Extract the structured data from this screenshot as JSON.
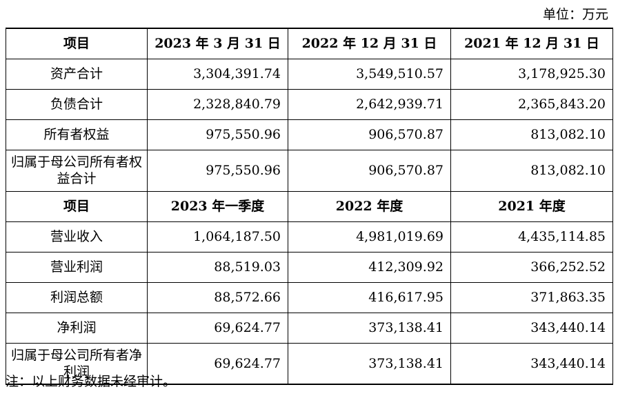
{
  "unit_label": "单位：万元",
  "table": {
    "balance_header": [
      "项目",
      "2023 年 3 月 31 日",
      "2022 年 12 月 31 日",
      "2021 年 12 月 31 日"
    ],
    "balance_rows": [
      {
        "label": "资产合计",
        "values": [
          "3,304,391.74",
          "3,549,510.57",
          "3,178,925.30"
        ]
      },
      {
        "label": "负债合计",
        "values": [
          "2,328,840.79",
          "2,642,939.71",
          "2,365,843.20"
        ]
      },
      {
        "label": "所有者权益",
        "values": [
          "975,550.96",
          "906,570.87",
          "813,082.10"
        ]
      },
      {
        "label": "归属于母公司所有者权益合计",
        "values": [
          "975,550.96",
          "906,570.87",
          "813,082.10"
        ]
      }
    ],
    "income_header": [
      "项目",
      "2023 年一季度",
      "2022 年度",
      "2021 年度"
    ],
    "income_rows": [
      {
        "label": "营业收入",
        "values": [
          "1,064,187.50",
          "4,981,019.69",
          "4,435,114.85"
        ]
      },
      {
        "label": "营业利润",
        "values": [
          "88,519.03",
          "412,309.92",
          "366,252.52"
        ]
      },
      {
        "label": "利润总额",
        "values": [
          "88,572.66",
          "416,617.95",
          "371,863.35"
        ]
      },
      {
        "label": "净利润",
        "values": [
          "69,624.77",
          "373,138.41",
          "343,440.14"
        ]
      },
      {
        "label": "归属于母公司所有者净利润",
        "values": [
          "69,624.77",
          "373,138.41",
          "343,440.14"
        ]
      }
    ]
  },
  "note": "注：以上财务数据未经审计。"
}
